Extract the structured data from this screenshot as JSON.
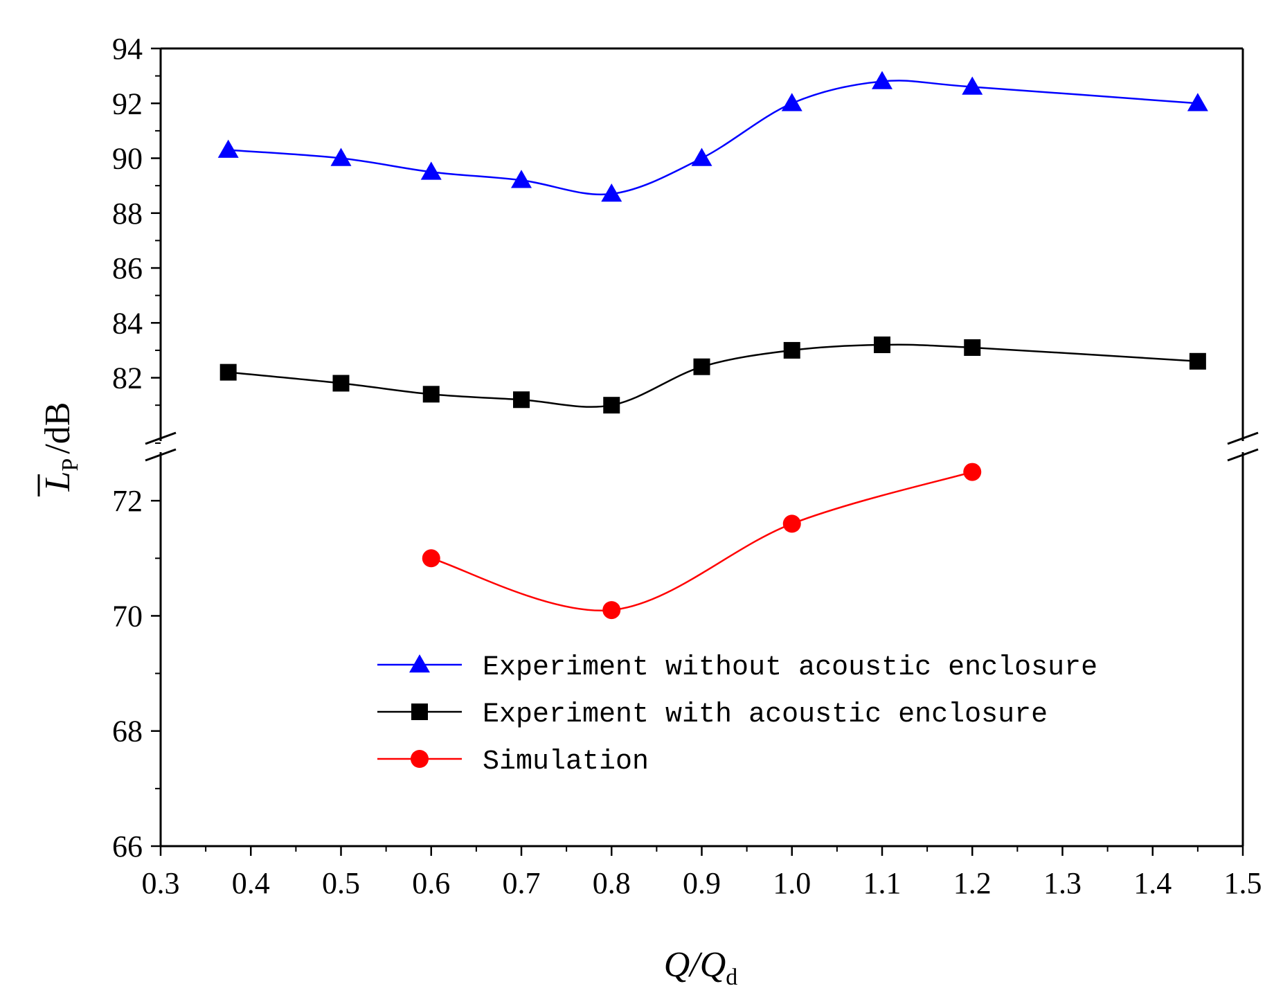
{
  "chart_data": {
    "type": "line",
    "title": "",
    "xlabel": "Q/Q",
    "xlabel_sub": "d",
    "ylabel": "/dB",
    "ylabel_symbol": "L",
    "ylabel_sub": "P",
    "xlim": [
      0.3,
      1.5
    ],
    "x_ticks": [
      "0.3",
      "0.4",
      "0.5",
      "0.6",
      "0.7",
      "0.8",
      "0.9",
      "1.0",
      "1.1",
      "1.2",
      "1.3",
      "1.4",
      "1.5"
    ],
    "y_segments": [
      {
        "range": [
          66,
          73
        ],
        "ticks": [
          "66",
          "68",
          "70",
          "72"
        ]
      },
      {
        "range": [
          80.5,
          94
        ],
        "ticks": [
          "82",
          "84",
          "86",
          "88",
          "90",
          "92",
          "94"
        ]
      }
    ],
    "axis_break": [
      73,
      80.5
    ],
    "grid": false,
    "legend_position": "lower-right",
    "series": [
      {
        "name": "Experiment without acoustic enclosure",
        "color": "#0000ff",
        "marker": "triangle",
        "x": [
          0.375,
          0.5,
          0.6,
          0.7,
          0.8,
          0.9,
          1.0,
          1.1,
          1.2,
          1.45
        ],
        "y": [
          90.3,
          90.0,
          89.5,
          89.2,
          88.7,
          90.0,
          92.0,
          92.8,
          92.6,
          92.0
        ]
      },
      {
        "name": "Experiment with acoustic enclosure",
        "color": "#000000",
        "marker": "square",
        "x": [
          0.375,
          0.5,
          0.6,
          0.7,
          0.8,
          0.9,
          1.0,
          1.1,
          1.2,
          1.45
        ],
        "y": [
          82.2,
          81.8,
          81.4,
          81.2,
          81.0,
          82.4,
          83.0,
          83.2,
          83.1,
          82.6
        ]
      },
      {
        "name": "Simulation",
        "color": "#ff0000",
        "marker": "circle",
        "x": [
          0.6,
          0.8,
          1.0,
          1.2
        ],
        "y": [
          71.0,
          70.1,
          71.6,
          72.5
        ]
      }
    ]
  }
}
